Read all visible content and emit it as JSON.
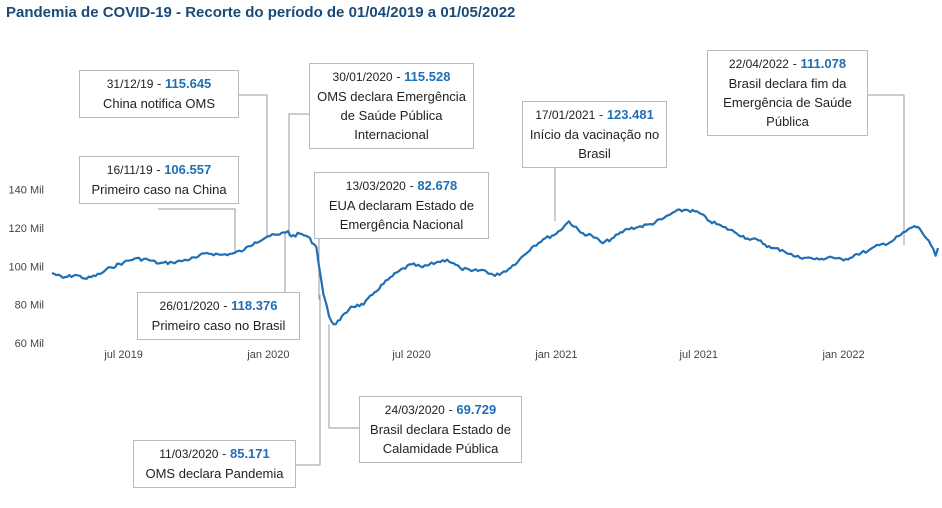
{
  "title": "Pandemia de COVID-19 - Recorte do período de 01/04/2019 a 01/05/2022",
  "colors": {
    "line": "#1f6fb6",
    "value": "#1f6fb6",
    "leader": "#9a9a9a",
    "border": "#b9b9b9"
  },
  "chart_data": {
    "type": "line",
    "y_ticks": [
      "60 Mil",
      "80 Mil",
      "100 Mil",
      "120 Mil",
      "140 Mil"
    ],
    "y_tick_values": [
      60000,
      80000,
      100000,
      120000,
      140000
    ],
    "ylim": [
      60000,
      145000
    ],
    "x_ticks": [
      "jul 2019",
      "jan 2020",
      "jul 2020",
      "jan 2021",
      "jul 2021",
      "jan 2022"
    ],
    "x_tick_dates": [
      "2019-07-01",
      "2020-01-01",
      "2020-07-01",
      "2021-01-01",
      "2021-07-01",
      "2022-01-01"
    ],
    "xlim": [
      "2019-04-01",
      "2022-05-01"
    ],
    "grid": false,
    "series": [
      {
        "x": [
          "2019-04-01",
          "2019-04-15",
          "2019-05-01",
          "2019-05-15",
          "2019-06-01",
          "2019-06-15",
          "2019-07-01",
          "2019-07-15",
          "2019-08-01",
          "2019-08-15",
          "2019-09-01",
          "2019-09-15",
          "2019-10-01",
          "2019-10-15",
          "2019-11-01",
          "2019-11-16",
          "2019-12-01",
          "2019-12-15",
          "2019-12-31",
          "2020-01-15",
          "2020-01-26",
          "2020-01-30",
          "2020-02-10",
          "2020-02-20",
          "2020-03-02",
          "2020-03-11",
          "2020-03-13",
          "2020-03-18",
          "2020-03-24",
          "2020-04-01",
          "2020-04-15",
          "2020-05-01",
          "2020-05-15",
          "2020-06-01",
          "2020-06-15",
          "2020-07-01",
          "2020-07-15",
          "2020-08-01",
          "2020-08-15",
          "2020-09-01",
          "2020-09-15",
          "2020-10-01",
          "2020-10-15",
          "2020-11-01",
          "2020-11-15",
          "2020-12-01",
          "2020-12-15",
          "2021-01-01",
          "2021-01-17",
          "2021-02-01",
          "2021-02-15",
          "2021-03-01",
          "2021-03-15",
          "2021-04-01",
          "2021-04-15",
          "2021-05-01",
          "2021-05-15",
          "2021-06-01",
          "2021-06-15",
          "2021-07-01",
          "2021-07-15",
          "2021-08-01",
          "2021-08-15",
          "2021-09-01",
          "2021-09-15",
          "2021-10-01",
          "2021-10-15",
          "2021-11-01",
          "2021-11-15",
          "2021-12-01",
          "2021-12-15",
          "2022-01-01",
          "2022-01-15",
          "2022-02-01",
          "2022-02-15",
          "2022-03-01",
          "2022-03-15",
          "2022-04-01",
          "2022-04-08",
          "2022-04-22",
          "2022-04-28",
          "2022-05-01"
        ],
        "y": [
          96500,
          94000,
          95500,
          93500,
          96000,
          99500,
          102000,
          104000,
          103500,
          101500,
          102000,
          103000,
          104500,
          107000,
          106000,
          106557,
          108500,
          112500,
          115645,
          116500,
          118376,
          115528,
          117000,
          115500,
          110000,
          85171,
          82678,
          74000,
          69729,
          72000,
          79000,
          80000,
          86500,
          93000,
          97500,
          101000,
          99500,
          102000,
          103500,
          99000,
          97500,
          98000,
          95000,
          98500,
          103500,
          110000,
          114000,
          117000,
          123481,
          117500,
          116000,
          112000,
          115000,
          119500,
          120500,
          122000,
          124500,
          128500,
          129500,
          128000,
          123500,
          120500,
          118000,
          114500,
          113500,
          109500,
          108500,
          105000,
          104500,
          103500,
          105000,
          103000,
          106000,
          108000,
          111000,
          112500,
          116500,
          121000,
          119500,
          111078,
          105500,
          109500
        ]
      }
    ]
  },
  "annotations": [
    {
      "id": "ann-31-12-19",
      "date": "31/12/19",
      "value": "115.645",
      "text": "China notifica OMS",
      "x": "2019-12-31",
      "y": 115645
    },
    {
      "id": "ann-16-11-19",
      "date": "16/11/19",
      "value": "106.557",
      "text": "Primeiro caso na China",
      "x": "2019-11-16",
      "y": 106557
    },
    {
      "id": "ann-30-01-2020",
      "date": "30/01/2020",
      "value": "115.528",
      "text": "OMS declara Emergência de Saúde Pública Internacional",
      "x": "2020-01-30",
      "y": 115528
    },
    {
      "id": "ann-13-03-2020",
      "date": "13/03/2020",
      "value": "82.678",
      "text": "EUA declaram Estado de Emergência Nacional",
      "x": "2020-03-13",
      "y": 82678
    },
    {
      "id": "ann-26-01-2020",
      "date": "26/01/2020",
      "value": "118.376",
      "text": "Primeiro caso no Brasil",
      "x": "2020-01-26",
      "y": 118376
    },
    {
      "id": "ann-24-03-2020",
      "date": "24/03/2020",
      "value": "69.729",
      "text": "Brasil declara Estado de Calamidade Pública",
      "x": "2020-03-24",
      "y": 69729
    },
    {
      "id": "ann-11-03-2020",
      "date": "11/03/2020",
      "value": "85.171",
      "text": "OMS declara Pandemia",
      "x": "2020-03-11",
      "y": 85171
    },
    {
      "id": "ann-17-01-2021",
      "date": "17/01/2021",
      "value": "123.481",
      "text": "Início da vacinação no Brasil",
      "x": "2021-01-17",
      "y": 123481
    },
    {
      "id": "ann-22-04-2022",
      "date": "22/04/2022",
      "value": "111.078",
      "text": "Brasil declara fim da Emergência de Saúde Pública",
      "x": "2022-04-22",
      "y": 111078
    }
  ]
}
